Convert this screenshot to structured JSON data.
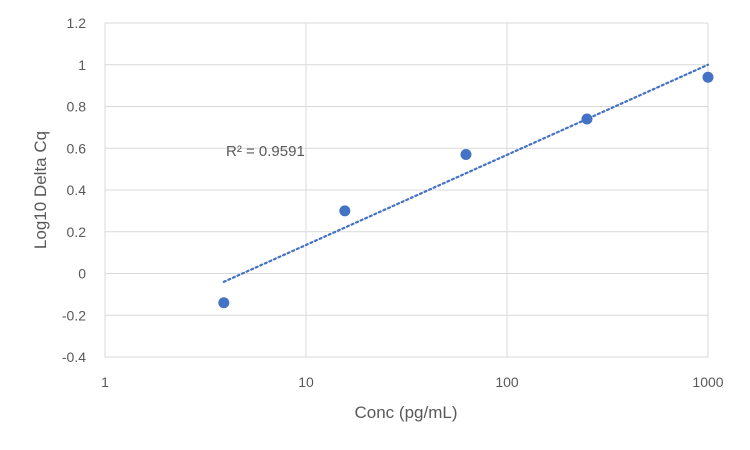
{
  "chart_data": {
    "type": "scatter",
    "xlabel": "Conc (pg/mL)",
    "ylabel": "Log10 Delta Cq",
    "xscale": "log",
    "xlim": [
      1,
      1000
    ],
    "ylim": [
      -0.4,
      1.2
    ],
    "xticks": [
      1,
      10,
      100,
      1000
    ],
    "xtick_labels": [
      "1",
      "10",
      "100",
      "1000"
    ],
    "yticks": [
      -0.4,
      -0.2,
      0,
      0.2,
      0.4,
      0.6,
      0.8,
      1,
      1.2
    ],
    "ytick_labels": [
      "-0.4",
      "-0.2",
      "0",
      "0.2",
      "0.4",
      "0.6",
      "0.8",
      "1",
      "1.2"
    ],
    "grid": true,
    "series": [
      {
        "color": "#4472c4",
        "points": [
          {
            "x": 3.9,
            "y": -0.14
          },
          {
            "x": 15.6,
            "y": 0.3
          },
          {
            "x": 62.5,
            "y": 0.57
          },
          {
            "x": 250,
            "y": 0.74
          },
          {
            "x": 1000,
            "y": 0.94
          }
        ]
      }
    ],
    "trendline": {
      "type": "logarithmic",
      "style": "dotted",
      "color": "#4472c4",
      "x_range": [
        3.9,
        1000
      ],
      "y_at_start": -0.04,
      "y_at_end": 1.0
    },
    "annotation": "R² = 0.9591"
  }
}
